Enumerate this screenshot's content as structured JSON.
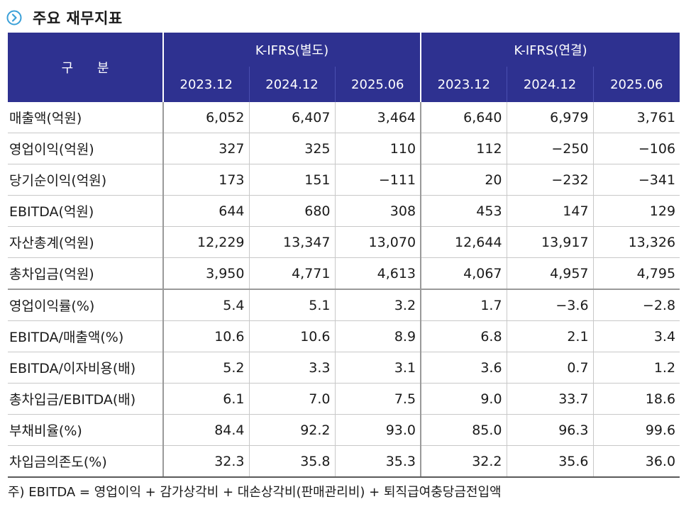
{
  "title": "주요 재무지표",
  "header": {
    "corner": "구 분",
    "groups": [
      "K-IFRS(별도)",
      "K-IFRS(연결)"
    ],
    "periods": [
      "2023.12",
      "2024.12",
      "2025.06",
      "2023.12",
      "2024.12",
      "2025.06"
    ]
  },
  "rows": [
    {
      "label": "매출액(억원)",
      "values": [
        "6,052",
        "6,407",
        "3,464",
        "6,640",
        "6,979",
        "3,761"
      ]
    },
    {
      "label": "영업이익(억원)",
      "values": [
        "327",
        "325",
        "110",
        "112",
        "−250",
        "−106"
      ]
    },
    {
      "label": "당기순이익(억원)",
      "values": [
        "173",
        "151",
        "−111",
        "20",
        "−232",
        "−341"
      ]
    },
    {
      "label": "EBITDA(억원)",
      "values": [
        "644",
        "680",
        "308",
        "453",
        "147",
        "129"
      ]
    },
    {
      "label": "자산총계(억원)",
      "values": [
        "12,229",
        "13,347",
        "13,070",
        "12,644",
        "13,917",
        "13,326"
      ]
    },
    {
      "label": "총차입금(억원)",
      "values": [
        "3,950",
        "4,771",
        "4,613",
        "4,067",
        "4,957",
        "4,795"
      ]
    },
    {
      "label": "영업이익률(%)",
      "values": [
        "5.4",
        "5.1",
        "3.2",
        "1.7",
        "−3.6",
        "−2.8"
      ]
    },
    {
      "label": "EBITDA/매출액(%)",
      "values": [
        "10.6",
        "10.6",
        "8.9",
        "6.8",
        "2.1",
        "3.4"
      ]
    },
    {
      "label": "EBITDA/이자비용(배)",
      "values": [
        "5.2",
        "3.3",
        "3.1",
        "3.6",
        "0.7",
        "1.2"
      ]
    },
    {
      "label": "총차입금/EBITDA(배)",
      "values": [
        "6.1",
        "7.0",
        "7.5",
        "9.0",
        "33.7",
        "18.6"
      ]
    },
    {
      "label": "부채비율(%)",
      "values": [
        "84.4",
        "92.2",
        "93.0",
        "85.0",
        "96.3",
        "99.6"
      ]
    },
    {
      "label": "차입금의존도(%)",
      "values": [
        "32.3",
        "35.8",
        "35.3",
        "32.2",
        "35.6",
        "36.0"
      ]
    }
  ],
  "note": "주) EBITDA = 영업이익 + 감가상각비 + 대손상각비(판매관리비) + 퇴직급여충당금전입액",
  "colors": {
    "header_bg": "#2e3190",
    "icon": "#3aa0d8"
  },
  "icon": "chevron-right-circle-icon"
}
